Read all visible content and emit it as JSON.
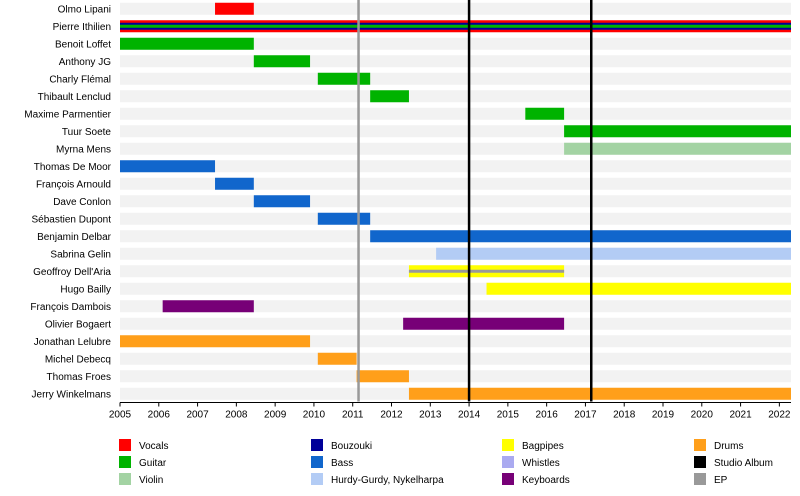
{
  "chart_data": {
    "type": "timeline",
    "title": "",
    "xlabel": "",
    "ylabel": "",
    "xlim": [
      2005,
      2022.3
    ],
    "x_ticks": [
      "2005",
      "2006",
      "2007",
      "2008",
      "2009",
      "2010",
      "2011",
      "2012",
      "2013",
      "2014",
      "2015",
      "2016",
      "2017",
      "2018",
      "2019",
      "2020",
      "2021",
      "2022"
    ],
    "members": [
      "Olmo Lipani",
      "Pierre Ithilien",
      "Benoit Loffet",
      "Anthony JG",
      "Charly Flémal",
      "Thibault Lenclud",
      "Maxime Parmentier",
      "Tuur Soete",
      "Myrna Mens",
      "Thomas De Moor",
      "François Arnould",
      "Dave Conlon",
      "Sébastien Dupont",
      "Benjamin Delbar",
      "Sabrina Gelin",
      "Geoffroy Dell'Aria",
      "Hugo Bailly",
      "François Dambois",
      "Olivier Bogaert",
      "Jonathan Lelubre",
      "Michel Debecq",
      "Thomas Froes",
      "Jerry Winkelmans"
    ],
    "bars": [
      {
        "member": 0,
        "start": 2007.45,
        "end": 2008.45,
        "role": "Vocals"
      },
      {
        "member": 1,
        "start": 2005.0,
        "end": 2022.3,
        "role": "Vocals"
      },
      {
        "member": 1,
        "start": 2005.0,
        "end": 2022.3,
        "role": "Bouzouki"
      },
      {
        "member": 1,
        "start": 2005.0,
        "end": 2022.3,
        "role": "Guitar"
      },
      {
        "member": 2,
        "start": 2005.0,
        "end": 2008.45,
        "role": "Guitar"
      },
      {
        "member": 3,
        "start": 2008.45,
        "end": 2009.9,
        "role": "Guitar"
      },
      {
        "member": 4,
        "start": 2010.1,
        "end": 2011.45,
        "role": "Guitar"
      },
      {
        "member": 5,
        "start": 2011.45,
        "end": 2012.45,
        "role": "Guitar"
      },
      {
        "member": 6,
        "start": 2015.45,
        "end": 2016.45,
        "role": "Guitar"
      },
      {
        "member": 7,
        "start": 2016.45,
        "end": 2022.3,
        "role": "Guitar"
      },
      {
        "member": 8,
        "start": 2016.45,
        "end": 2022.3,
        "role": "Violin"
      },
      {
        "member": 9,
        "start": 2005.0,
        "end": 2007.45,
        "role": "Bass"
      },
      {
        "member": 10,
        "start": 2007.45,
        "end": 2008.45,
        "role": "Bass"
      },
      {
        "member": 11,
        "start": 2008.45,
        "end": 2009.9,
        "role": "Bass"
      },
      {
        "member": 12,
        "start": 2010.1,
        "end": 2011.45,
        "role": "Bass"
      },
      {
        "member": 13,
        "start": 2011.45,
        "end": 2022.3,
        "role": "Bass"
      },
      {
        "member": 14,
        "start": 2013.15,
        "end": 2022.3,
        "role": "Hurdy-Gurdy, Nykelharpa"
      },
      {
        "member": 15,
        "start": 2012.45,
        "end": 2016.45,
        "role": "Bagpipes"
      },
      {
        "member": 15,
        "start": 2012.45,
        "end": 2016.45,
        "role": "Whistles",
        "overlay": true
      },
      {
        "member": 16,
        "start": 2014.45,
        "end": 2022.3,
        "role": "Bagpipes"
      },
      {
        "member": 17,
        "start": 2006.1,
        "end": 2008.45,
        "role": "Keyboards"
      },
      {
        "member": 18,
        "start": 2012.3,
        "end": 2016.45,
        "role": "Keyboards"
      },
      {
        "member": 19,
        "start": 2005.0,
        "end": 2009.9,
        "role": "Drums"
      },
      {
        "member": 20,
        "start": 2010.1,
        "end": 2011.1,
        "role": "Drums"
      },
      {
        "member": 21,
        "start": 2011.1,
        "end": 2012.45,
        "role": "Drums"
      },
      {
        "member": 22,
        "start": 2012.45,
        "end": 2022.3,
        "role": "Drums"
      }
    ],
    "events": [
      {
        "year": 2011.15,
        "type": "EP"
      },
      {
        "year": 2014.0,
        "type": "Studio Album"
      },
      {
        "year": 2017.15,
        "type": "Studio Album"
      }
    ],
    "legend": [
      {
        "label": "Vocals",
        "color": "#ff0000"
      },
      {
        "label": "Guitar",
        "color": "#00b300"
      },
      {
        "label": "Violin",
        "color": "#a3d3a3"
      },
      {
        "label": "Bouzouki",
        "color": "#000099"
      },
      {
        "label": "Bass",
        "color": "#1166cc"
      },
      {
        "label": "Hurdy-Gurdy, Nykelharpa",
        "color": "#b3ccf5"
      },
      {
        "label": "Bagpipes",
        "color": "#ffff00"
      },
      {
        "label": "Whistles",
        "color": "#aaaaf0"
      },
      {
        "label": "Keyboards",
        "color": "#770077"
      },
      {
        "label": "Drums",
        "color": "#ff9f1a"
      },
      {
        "label": "Studio Album",
        "color": "#000000"
      },
      {
        "label": "EP",
        "color": "#999999"
      }
    ]
  }
}
